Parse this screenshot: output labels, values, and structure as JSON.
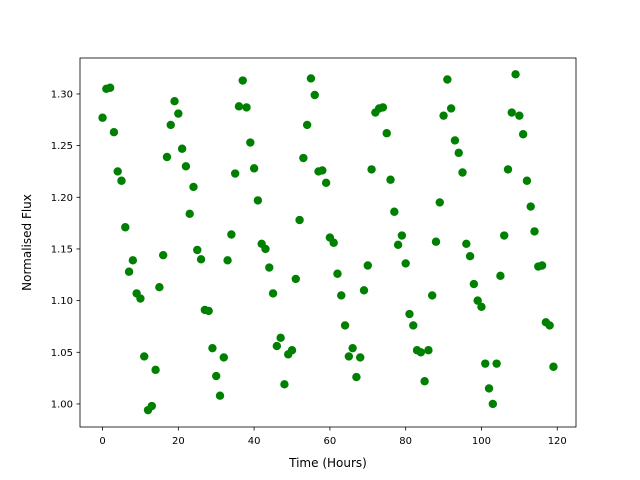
{
  "chart_data": {
    "type": "scatter",
    "xlabel": "Time (Hours)",
    "ylabel": "Normalised Flux",
    "color": "#008000",
    "x": [
      0,
      1,
      2,
      3,
      4,
      5,
      6,
      7,
      8,
      9,
      10,
      11,
      12,
      13,
      14,
      15,
      16,
      17,
      18,
      19,
      20,
      21,
      22,
      23,
      24,
      25,
      26,
      27,
      28,
      29,
      30,
      31,
      32,
      33,
      34,
      35,
      36,
      37,
      38,
      39,
      40,
      41,
      42,
      43,
      44,
      45,
      46,
      47,
      48,
      49,
      50,
      51,
      52,
      53,
      54,
      55,
      56,
      57,
      58,
      59,
      60,
      61,
      62,
      63,
      64,
      65,
      66,
      67,
      68,
      69,
      70,
      71,
      72,
      73,
      74,
      75,
      76,
      77,
      78,
      79,
      80,
      81,
      82,
      83,
      84,
      85,
      86,
      87,
      88,
      89,
      90,
      91,
      92,
      93,
      94,
      95,
      96,
      97,
      98,
      99,
      100,
      101,
      102,
      103,
      104,
      105,
      106,
      107,
      108,
      109,
      110,
      111,
      112,
      113,
      114,
      115,
      116,
      117,
      118,
      119
    ],
    "values": [
      1.277,
      1.305,
      1.306,
      1.263,
      1.225,
      1.216,
      1.171,
      1.128,
      1.139,
      1.107,
      1.102,
      1.046,
      0.994,
      0.998,
      1.033,
      1.113,
      1.144,
      1.239,
      1.27,
      1.293,
      1.281,
      1.247,
      1.23,
      1.184,
      1.21,
      1.149,
      1.14,
      1.091,
      1.09,
      1.054,
      1.027,
      1.008,
      1.045,
      1.139,
      1.164,
      1.223,
      1.288,
      1.313,
      1.287,
      1.253,
      1.228,
      1.197,
      1.155,
      1.15,
      1.132,
      1.107,
      1.056,
      1.064,
      1.019,
      1.048,
      1.052,
      1.121,
      1.178,
      1.238,
      1.27,
      1.315,
      1.299,
      1.225,
      1.226,
      1.214,
      1.161,
      1.156,
      1.126,
      1.105,
      1.076,
      1.046,
      1.054,
      1.026,
      1.045,
      1.11,
      1.134,
      1.227,
      1.282,
      1.286,
      1.287,
      1.262,
      1.217,
      1.186,
      1.154,
      1.163,
      1.136,
      1.087,
      1.076,
      1.052,
      1.05,
      1.022,
      1.052,
      1.105,
      1.157,
      1.195,
      1.279,
      1.314,
      1.286,
      1.255,
      1.243,
      1.224,
      1.155,
      1.143,
      1.116,
      1.1,
      1.094,
      1.039,
      1.015,
      1.0,
      1.039,
      1.124,
      1.163,
      1.227,
      1.282,
      1.319,
      1.279,
      1.261,
      1.216,
      1.191,
      1.167,
      1.133,
      1.134,
      1.079,
      1.076,
      1.036
    ],
    "xlim": [
      -5.95,
      124.95
    ],
    "xticks": [
      0,
      20,
      40,
      60,
      80,
      100,
      120
    ],
    "ylim": [
      0.9777,
      1.3348
    ],
    "yticks": [
      {
        "value": 1.0,
        "label": "1.00"
      },
      {
        "value": 1.05,
        "label": "1.05"
      },
      {
        "value": 1.1,
        "label": "1.10"
      },
      {
        "value": 1.15,
        "label": "1.15"
      },
      {
        "value": 1.2,
        "label": "1.20"
      },
      {
        "value": 1.25,
        "label": "1.25"
      },
      {
        "value": 1.3,
        "label": "1.30"
      }
    ],
    "grid": false
  }
}
